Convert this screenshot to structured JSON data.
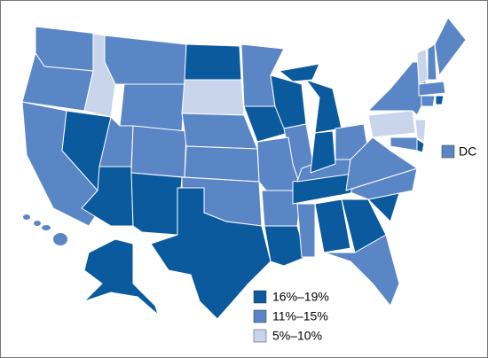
{
  "legend": [
    {
      "label": "16%–19%",
      "color": "#0b5a9e"
    },
    {
      "label": "11%–15%",
      "color": "#5b86c6"
    },
    {
      "label": "5%–10%",
      "color": "#c9d5ea"
    }
  ],
  "dc": {
    "label": "DC",
    "color": "#5b86c6"
  }
}
